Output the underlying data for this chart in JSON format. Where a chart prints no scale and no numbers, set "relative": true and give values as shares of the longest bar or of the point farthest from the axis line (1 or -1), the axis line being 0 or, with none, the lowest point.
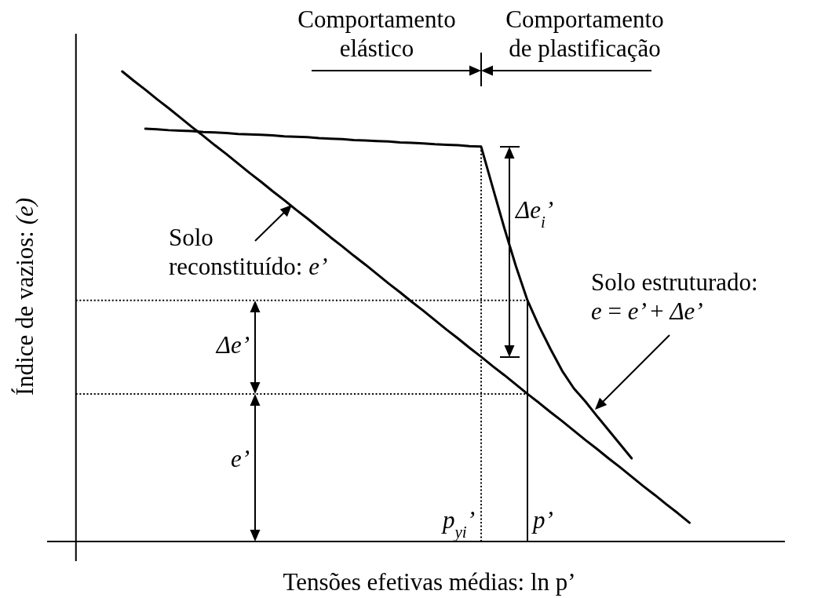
{
  "chart_data": {
    "type": "line",
    "relative": true,
    "xlabel": "Tensões efetivas médias: ln p’",
    "ylabel": "Índice de vazios: (e)",
    "categories": [
      null,
      null,
      null,
      null,
      null,
      null,
      null,
      null,
      null,
      null,
      null,
      null,
      null,
      null,
      null,
      null,
      null,
      null,
      null,
      null,
      null,
      null,
      null,
      null,
      null,
      null,
      null,
      null,
      null,
      null,
      null,
      null,
      null,
      null,
      null,
      null,
      null,
      null,
      null,
      null,
      null,
      null,
      null,
      null,
      null,
      null,
      null,
      null,
      null,
      null,
      null,
      null,
      null,
      null
    ],
    "series": [
      {
        "name": "Solo\nreconstituído: e’",
        "color": "#000000",
        "values": [
          null,
          null,
          null,
          null,
          1.0,
          0.98,
          0.961,
          0.941,
          0.922,
          0.902,
          0.882,
          0.863,
          0.843,
          0.824,
          0.804,
          0.784,
          0.765,
          0.745,
          0.726,
          0.706,
          0.687,
          0.667,
          0.647,
          0.628,
          0.608,
          0.589,
          0.569,
          0.549,
          0.53,
          0.51,
          0.491,
          0.471,
          0.451,
          0.432,
          0.412,
          0.393,
          0.373,
          0.354,
          0.334,
          0.314,
          0.295,
          0.275,
          0.256,
          0.236,
          0.216,
          0.197,
          0.177,
          0.158,
          0.138,
          0.118,
          0.099,
          0.079,
          0.06,
          0.04
        ]
      },
      {
        "name": "Solo estruturado:\ne = e’ + Δe’",
        "color": "#000000",
        "values": [
          null,
          null,
          null,
          null,
          null,
          null,
          0.878,
          0.877,
          0.875,
          0.874,
          0.873,
          0.871,
          0.87,
          0.869,
          0.867,
          0.866,
          0.865,
          0.864,
          0.862,
          0.861,
          0.86,
          0.858,
          0.857,
          0.856,
          0.854,
          0.853,
          0.852,
          0.851,
          0.849,
          0.848,
          0.847,
          0.845,
          0.844,
          0.843,
          0.841,
          0.84,
          0.753,
          0.667,
          0.586,
          0.513,
          0.458,
          0.409,
          0.363,
          0.326,
          0.298,
          0.267,
          0.237,
          0.207,
          0.177,
          null,
          null,
          null,
          null,
          null
        ]
      },
      {
        "color": "#000000",
        "line_style": "dotted",
        "values": [
          0.513,
          0.513,
          0.513,
          0.513,
          0.513,
          0.513,
          0.513,
          0.513,
          0.513,
          0.513,
          0.513,
          0.513,
          0.513,
          0.513,
          0.513,
          0.513,
          0.513,
          0.513,
          0.513,
          0.513,
          0.513,
          0.513,
          0.513,
          0.513,
          0.513,
          0.513,
          0.513,
          0.513,
          0.513,
          0.513,
          0.513,
          0.513,
          0.513,
          0.513,
          0.513,
          0.513,
          0.513,
          0.513,
          0.513,
          0.513,
          null,
          null,
          null,
          null,
          null,
          null,
          null,
          null,
          null,
          null,
          null,
          null,
          null,
          null
        ]
      },
      {
        "color": "#000000",
        "line_style": "dotted",
        "values": [
          0.314,
          0.314,
          0.314,
          0.314,
          0.314,
          0.314,
          0.314,
          0.314,
          0.314,
          0.314,
          0.314,
          0.314,
          0.314,
          0.314,
          0.314,
          0.314,
          0.314,
          0.314,
          0.314,
          0.314,
          0.314,
          0.314,
          0.314,
          0.314,
          0.314,
          0.314,
          0.314,
          0.314,
          0.314,
          0.314,
          0.314,
          0.314,
          0.314,
          0.314,
          0.314,
          0.314,
          0.314,
          0.314,
          0.314,
          0.314,
          null,
          null,
          null,
          null,
          null,
          null,
          null,
          null,
          null,
          null,
          null,
          null,
          null,
          null
        ]
      }
    ],
    "annotations": [
      "Comportamento\nelástico",
      "Comportamento\nde plastificação",
      "Δe$_{i}$’",
      "Δe’",
      "e’",
      "p$_{yi}$’",
      "p’"
    ]
  }
}
